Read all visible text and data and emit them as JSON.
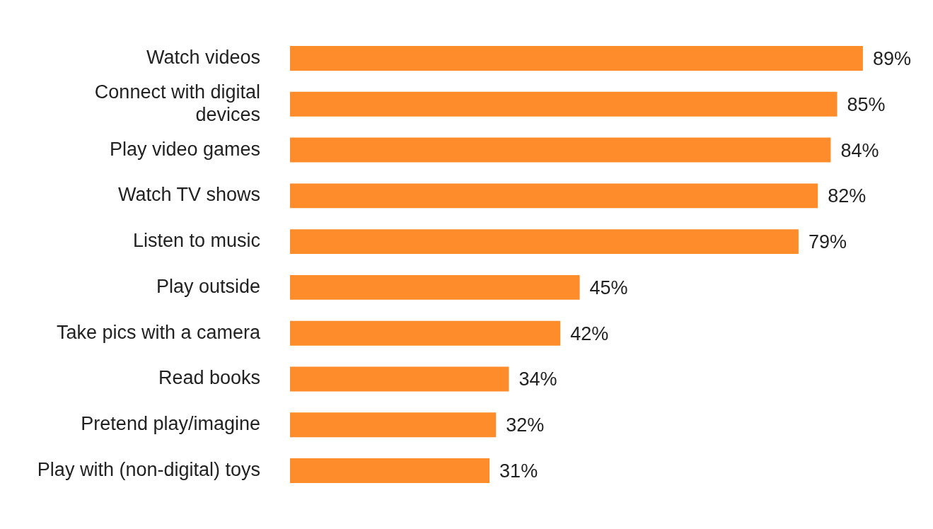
{
  "chart_data": {
    "type": "bar",
    "orientation": "horizontal",
    "categories": [
      "Watch videos",
      "Connect with digital devices",
      "Play video games",
      "Watch TV shows",
      "Listen to music",
      "Play outside",
      "Take pics with a camera",
      "Read books",
      "Pretend play/imagine",
      "Play with (non-digital) toys"
    ],
    "values": [
      89,
      85,
      84,
      82,
      79,
      45,
      42,
      34,
      32,
      31
    ],
    "value_labels": [
      "89%",
      "85%",
      "84%",
      "82%",
      "79%",
      "45%",
      "42%",
      "34%",
      "32%",
      "31%"
    ],
    "color": "#ff8c2a",
    "grid": false,
    "legend": false
  }
}
